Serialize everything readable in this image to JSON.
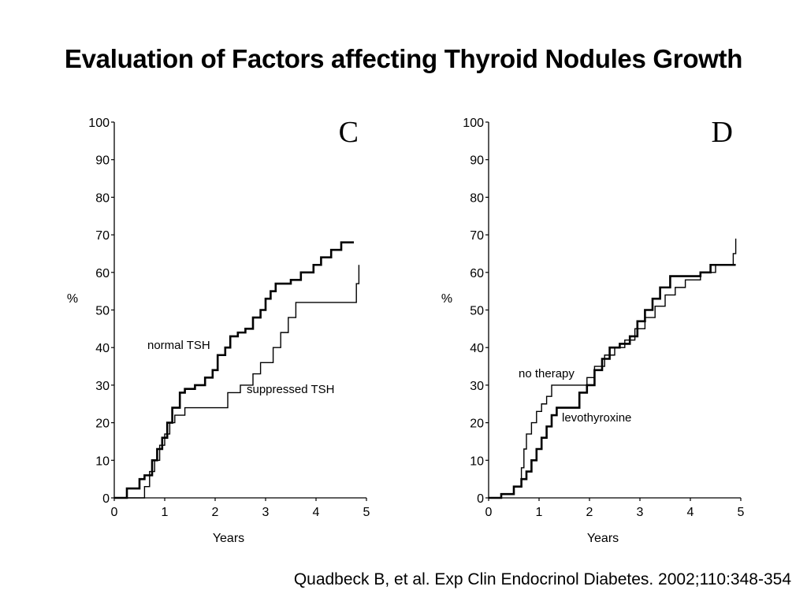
{
  "slide": {
    "title": "Evaluation of Factors affecting Thyroid Nodules Growth",
    "citation": "Quadbeck B, et al. Exp Clin Endocrinol Diabetes. 2002;110:348-354"
  },
  "chart_data": [
    {
      "type": "line",
      "step": true,
      "panel": "C",
      "xlabel": "Years",
      "ylabel": "%",
      "xlim": [
        0,
        5
      ],
      "ylim": [
        0,
        100
      ],
      "xticks": [
        0,
        1,
        2,
        3,
        4,
        5
      ],
      "yticks": [
        0,
        10,
        20,
        30,
        40,
        50,
        60,
        70,
        80,
        90,
        100
      ],
      "grid": false,
      "series": [
        {
          "name": "normal TSH",
          "weight": "thick",
          "x": [
            0,
            0.25,
            0.5,
            0.6,
            0.75,
            0.85,
            0.95,
            1.05,
            1.15,
            1.3,
            1.4,
            1.6,
            1.8,
            1.95,
            2.05,
            2.2,
            2.3,
            2.45,
            2.6,
            2.75,
            2.9,
            3.0,
            3.1,
            3.2,
            3.5,
            3.7,
            3.95,
            4.1,
            4.3,
            4.5,
            4.75
          ],
          "y": [
            0,
            2.5,
            5,
            6,
            10,
            13,
            16,
            20,
            24,
            28,
            29,
            30,
            32,
            34,
            38,
            40,
            43,
            44,
            45,
            48,
            50,
            53,
            55,
            57,
            58,
            60,
            62,
            64,
            66,
            68,
            68
          ]
        },
        {
          "name": "suppressed TSH",
          "weight": "thin",
          "x": [
            0,
            0.6,
            0.7,
            0.8,
            0.9,
            1.0,
            1.1,
            1.2,
            1.4,
            2.15,
            2.25,
            2.5,
            2.75,
            2.9,
            3.15,
            3.3,
            3.45,
            3.6,
            4.5,
            4.8,
            4.85
          ],
          "y": [
            0,
            3,
            7,
            10,
            14,
            17,
            20,
            22,
            24,
            24,
            28,
            30,
            33,
            36,
            40,
            44,
            48,
            52,
            52,
            57,
            62
          ]
        }
      ]
    },
    {
      "type": "line",
      "step": true,
      "panel": "D",
      "xlabel": "Years",
      "ylabel": "%",
      "xlim": [
        0,
        5
      ],
      "ylim": [
        0,
        100
      ],
      "xticks": [
        0,
        1,
        2,
        3,
        4,
        5
      ],
      "yticks": [
        0,
        10,
        20,
        30,
        40,
        50,
        60,
        70,
        80,
        90,
        100
      ],
      "grid": false,
      "series": [
        {
          "name": "no therapy",
          "weight": "thin",
          "x": [
            0,
            0.25,
            0.5,
            0.65,
            0.7,
            0.75,
            0.85,
            0.95,
            1.05,
            1.15,
            1.25,
            1.85,
            1.95,
            2.1,
            2.3,
            2.5,
            2.7,
            2.9,
            3.1,
            3.3,
            3.5,
            3.7,
            3.9,
            4.2,
            4.5,
            4.85,
            4.9
          ],
          "y": [
            0,
            1,
            3,
            8,
            13,
            17,
            20,
            23,
            25,
            27,
            30,
            30,
            32,
            35,
            38,
            40,
            42,
            45,
            48,
            51,
            54,
            56,
            58,
            60,
            62,
            65,
            69
          ]
        },
        {
          "name": "levothyroxine",
          "weight": "thick",
          "x": [
            0,
            0.25,
            0.5,
            0.65,
            0.75,
            0.85,
            0.95,
            1.05,
            1.15,
            1.25,
            1.35,
            1.45,
            1.8,
            1.95,
            2.1,
            2.25,
            2.4,
            2.6,
            2.8,
            2.95,
            3.1,
            3.25,
            3.4,
            3.6,
            4.0,
            4.2,
            4.4,
            4.65,
            4.9
          ],
          "y": [
            0,
            1,
            3,
            5,
            7,
            10,
            13,
            16,
            19,
            22,
            24,
            24,
            28,
            30,
            34,
            37,
            40,
            41,
            43,
            47,
            50,
            53,
            56,
            59,
            59,
            60,
            62,
            62,
            62
          ]
        }
      ]
    }
  ]
}
